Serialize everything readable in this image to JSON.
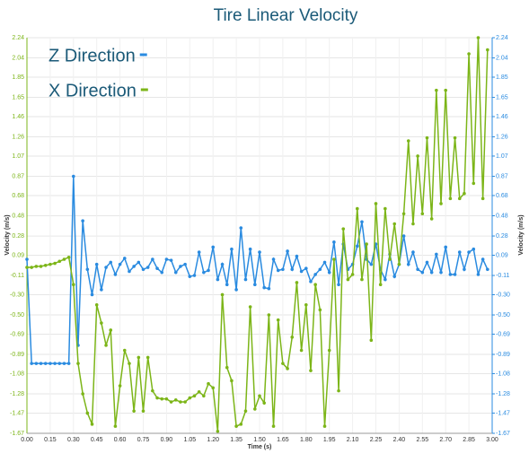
{
  "chart_data": {
    "type": "line",
    "title": "Tire Linear Velocity",
    "x_label": "Time (s)",
    "y_label": "Velocity (m/s)",
    "y2_label": "Velocity (m/s)",
    "x": [
      0,
      0.03,
      0.06,
      0.09,
      0.12,
      0.15,
      0.18,
      0.21,
      0.24,
      0.27,
      0.3,
      0.33,
      0.36,
      0.39,
      0.42,
      0.45,
      0.48,
      0.51,
      0.54,
      0.57,
      0.6,
      0.63,
      0.66,
      0.69,
      0.72,
      0.75,
      0.78,
      0.81,
      0.84,
      0.87,
      0.9,
      0.93,
      0.96,
      0.99,
      1.02,
      1.05,
      1.08,
      1.11,
      1.14,
      1.17,
      1.2,
      1.23,
      1.26,
      1.29,
      1.32,
      1.35,
      1.38,
      1.41,
      1.44,
      1.47,
      1.5,
      1.53,
      1.56,
      1.59,
      1.62,
      1.65,
      1.68,
      1.71,
      1.74,
      1.77,
      1.8,
      1.83,
      1.86,
      1.89,
      1.92,
      1.95,
      1.98,
      2.01,
      2.04,
      2.07,
      2.1,
      2.13,
      2.16,
      2.19,
      2.22,
      2.25,
      2.28,
      2.31,
      2.34,
      2.37,
      2.4,
      2.43,
      2.46,
      2.49,
      2.52,
      2.55,
      2.58,
      2.61,
      2.64,
      2.67,
      2.7,
      2.73,
      2.76,
      2.79,
      2.82,
      2.85,
      2.88,
      2.91,
      2.94,
      2.97
    ],
    "series": [
      {
        "name": "Z Direction",
        "color": "#2a8be0",
        "axis": "y2",
        "values": [
          0.05,
          -0.98,
          -0.98,
          -0.98,
          -0.98,
          -0.98,
          -0.98,
          -0.98,
          -0.98,
          -0.98,
          0.87,
          -0.8,
          0.43,
          -0.05,
          -0.3,
          0.0,
          -0.25,
          -0.03,
          0.02,
          -0.1,
          0.0,
          0.06,
          -0.07,
          -0.02,
          0.02,
          -0.05,
          -0.03,
          0.05,
          -0.04,
          -0.08,
          0.05,
          0.04,
          -0.08,
          -0.02,
          0.0,
          -0.12,
          -0.11,
          0.12,
          -0.08,
          -0.06,
          0.17,
          -0.15,
          0.0,
          -0.2,
          0.15,
          -0.25,
          0.36,
          -0.15,
          0.15,
          -0.2,
          0.12,
          -0.23,
          -0.24,
          0.05,
          -0.06,
          -0.05,
          0.13,
          -0.05,
          0.08,
          -0.07,
          -0.04,
          -0.17,
          -0.1,
          -0.05,
          0.02,
          -0.08,
          0.22,
          -0.2,
          0.2,
          -0.05,
          0.0,
          0.18,
          0.42,
          0.05,
          0.0,
          0.2,
          -0.05,
          -0.15,
          0.1,
          -0.12,
          0.0,
          0.28,
          0.0,
          0.12,
          -0.05,
          -0.08,
          0.02,
          -0.08,
          0.1,
          -0.08,
          0.17,
          -0.1,
          -0.1,
          0.12,
          -0.05,
          0.12,
          0.15,
          -0.1,
          0.05,
          -0.05
        ]
      },
      {
        "name": "X Direction",
        "color": "#7cb518",
        "values": [
          -0.03,
          -0.03,
          -0.02,
          -0.02,
          -0.01,
          0.0,
          0.01,
          0.03,
          0.05,
          0.07,
          -0.2,
          -0.98,
          -1.28,
          -1.47,
          -1.58,
          -0.4,
          -0.58,
          -0.8,
          -0.65,
          -1.6,
          -1.2,
          -0.85,
          -0.98,
          -1.45,
          -0.92,
          -1.45,
          -0.92,
          -1.25,
          -1.32,
          -1.33,
          -1.33,
          -1.36,
          -1.34,
          -1.36,
          -1.36,
          -1.32,
          -1.3,
          -1.26,
          -1.3,
          -1.18,
          -1.22,
          -1.65,
          -0.3,
          -1.02,
          -1.15,
          -1.6,
          -1.58,
          -1.45,
          -0.42,
          -1.43,
          -1.3,
          -1.37,
          -0.5,
          -1.6,
          -0.55,
          -0.98,
          -1.03,
          -0.72,
          -0.18,
          -0.85,
          -0.4,
          -1.05,
          -0.2,
          -0.45,
          -1.6,
          -0.85,
          0.05,
          -1.25,
          0.35,
          -0.15,
          -0.1,
          0.55,
          -0.15,
          0.2,
          -0.75,
          0.6,
          -0.2,
          0.55,
          0.05,
          0.4,
          0.0,
          0.5,
          1.22,
          0.4,
          1.07,
          0.5,
          1.25,
          0.45,
          1.72,
          0.6,
          1.72,
          0.65,
          1.25,
          0.65,
          0.7,
          2.08,
          0.8,
          2.24,
          0.65,
          2.12
        ]
      }
    ],
    "xlim": [
      0,
      3
    ],
    "xticks": [
      {
        "value": 0,
        "label": "0.00"
      },
      0.15,
      {
        "value": 0.3,
        "label": "0.30"
      },
      0.45,
      {
        "value": 0.6,
        "label": "0.60"
      },
      0.75,
      {
        "value": 0.9,
        "label": "0.90"
      },
      1.05,
      {
        "value": 1.2,
        "label": "1.20"
      },
      1.35,
      {
        "value": 1.5,
        "label": "1.50"
      },
      1.65,
      {
        "value": 1.8,
        "label": "1.80"
      },
      1.95,
      {
        "value": 2.1,
        "label": "2.10"
      },
      2.25,
      {
        "value": 2.4,
        "label": "2.40"
      },
      2.55,
      {
        "value": 2.7,
        "label": "2.70"
      },
      2.85,
      {
        "value": 3,
        "label": "3.00"
      }
    ],
    "ylim": [
      -1.67,
      2.24
    ],
    "yticks": [
      2.24,
      2.04,
      1.85,
      1.65,
      1.46,
      1.26,
      1.07,
      0.87,
      0.68,
      0.48,
      0.28,
      0.09,
      -0.11,
      {
        "value": -0.3,
        "label": "-0.30"
      },
      {
        "value": -0.5,
        "label": "-0.50"
      },
      -0.69,
      -0.89,
      -1.08,
      -1.28,
      -1.47,
      -1.67
    ],
    "y2lim": [
      -1.67,
      2.24
    ],
    "y2ticks": [
      2.24,
      2.04,
      1.85,
      1.65,
      1.46,
      1.26,
      1.07,
      0.87,
      0.68,
      0.48,
      0.28,
      0.09,
      -0.11,
      {
        "value": -0.3,
        "label": "-0.30"
      },
      {
        "value": -0.5,
        "label": "-0.50"
      },
      -0.69,
      -0.89,
      -1.08,
      -1.28,
      -1.47,
      -1.67
    ],
    "grid": true,
    "legend": "top-left"
  }
}
